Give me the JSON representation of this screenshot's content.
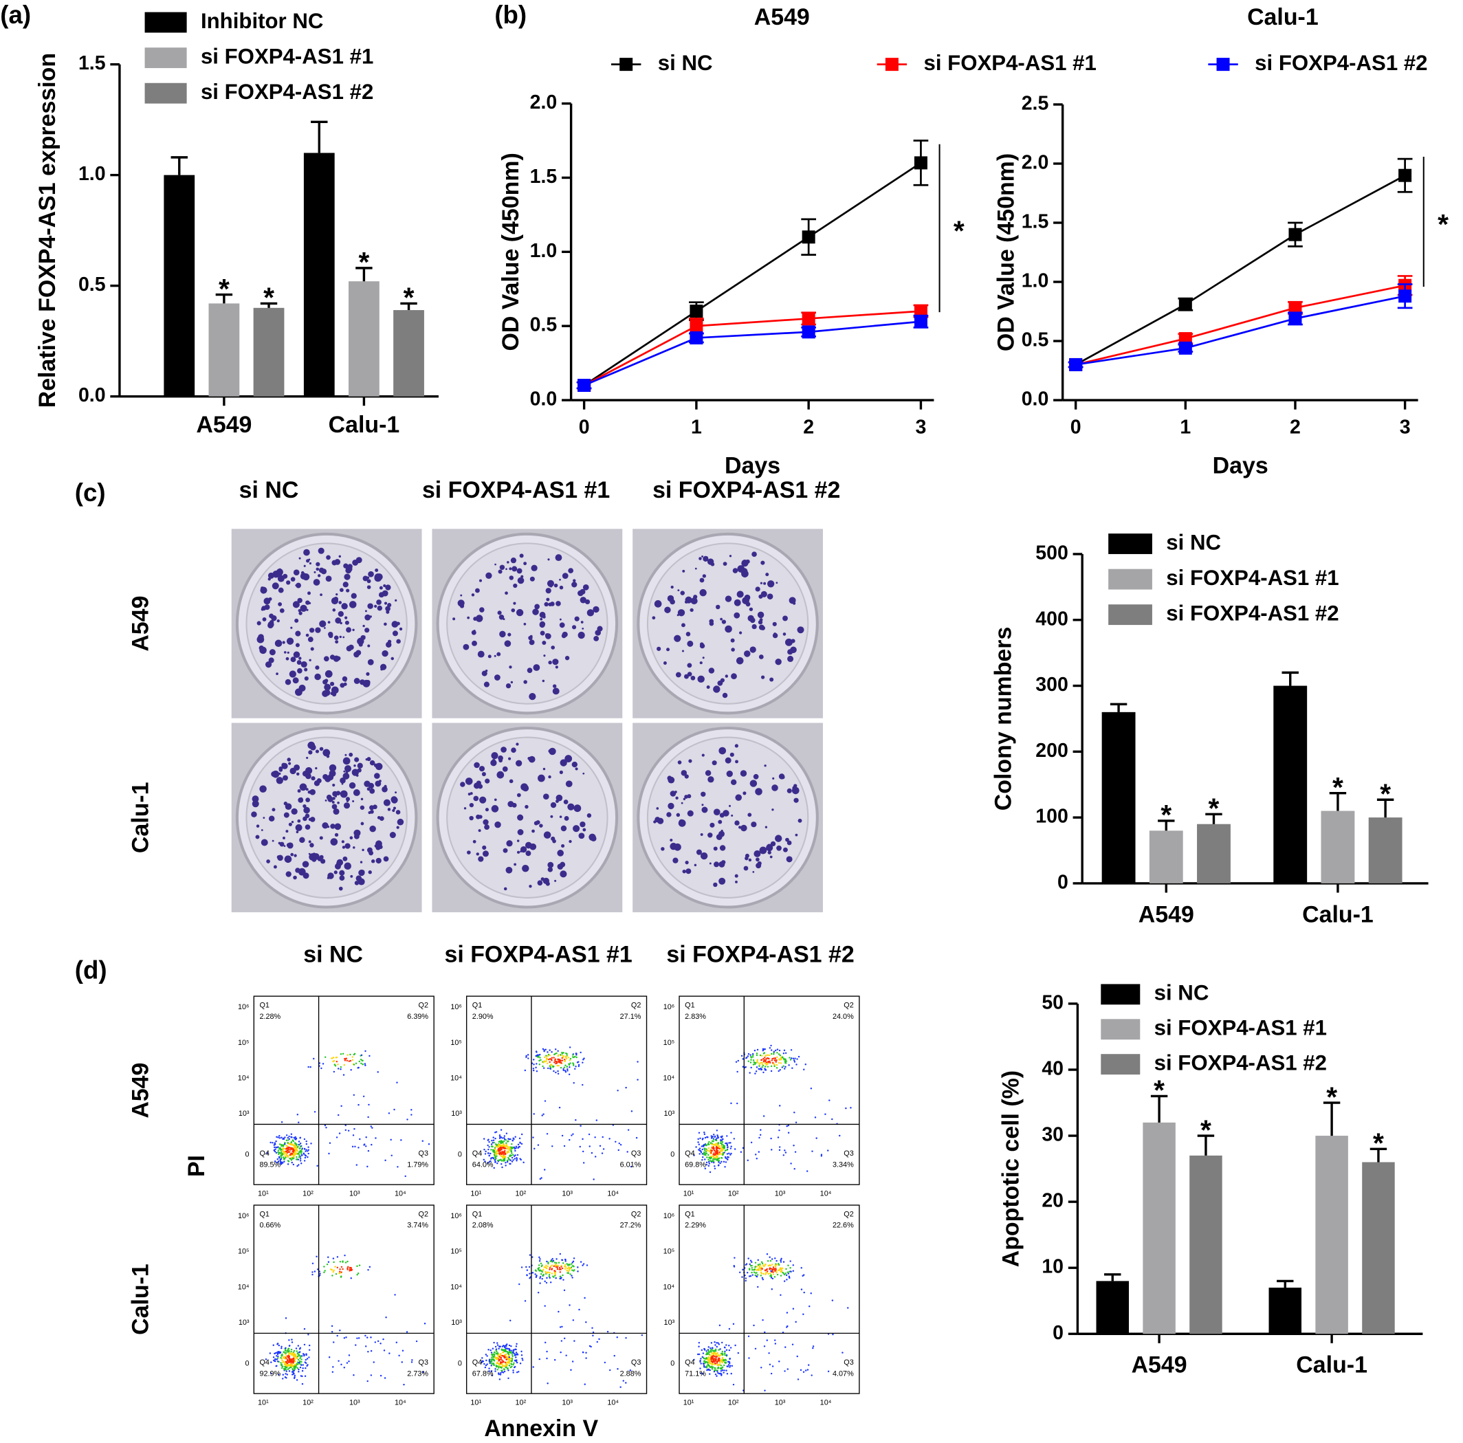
{
  "panels": [
    "(a)",
    "(b)",
    "(c)",
    "(d)"
  ],
  "chart_data": [
    {
      "type": "bar",
      "ylabel": "Relative FOXP4-AS1 expression",
      "categories": [
        "A549",
        "Calu-1"
      ],
      "series": [
        {
          "name": "Inhibitor NC",
          "color": "#000000",
          "values": [
            1.0,
            1.1
          ],
          "errors": [
            0.08,
            0.14
          ]
        },
        {
          "name": "si FOXP4-AS1 #1",
          "color": "#a5a5a8",
          "values": [
            0.42,
            0.52
          ],
          "errors": [
            0.04,
            0.06
          ],
          "significance": [
            "*",
            "*"
          ]
        },
        {
          "name": "si FOXP4-AS1 #2",
          "color": "#7e7e7e",
          "values": [
            0.4,
            0.39
          ],
          "errors": [
            0.02,
            0.03
          ],
          "significance": [
            "*",
            "*"
          ]
        }
      ],
      "ylim": [
        0,
        1.5
      ],
      "yticks": [
        {
          "value": 0,
          "label": "0.0"
        },
        {
          "value": 0.5,
          "label": "0.5"
        },
        {
          "value": 1,
          "label": "1.0"
        },
        {
          "value": 1.5,
          "label": "1.5"
        }
      ]
    },
    {
      "type": "line",
      "title": "A549",
      "xlabel": "Days",
      "ylabel": "OD Value (450nm)",
      "x": [
        0,
        1,
        2,
        3
      ],
      "series": [
        {
          "name": "si NC",
          "color": "#000000",
          "values": [
            0.1,
            0.6,
            1.1,
            1.6
          ],
          "errors": [
            0.02,
            0.06,
            0.12,
            0.15
          ]
        },
        {
          "name": "si FOXP4-AS1 #1",
          "color": "#ff0000",
          "values": [
            0.1,
            0.5,
            0.55,
            0.6
          ],
          "errors": [
            0.02,
            0.05,
            0.04,
            0.04
          ]
        },
        {
          "name": "si FOXP4-AS1 #2",
          "color": "#0000ff",
          "values": [
            0.1,
            0.42,
            0.46,
            0.53
          ],
          "errors": [
            0.02,
            0.03,
            0.03,
            0.04
          ]
        }
      ],
      "annotation": "*",
      "xlim": [
        0,
        3
      ],
      "xticks": [
        0,
        1,
        2,
        3
      ],
      "ylim": [
        0,
        2
      ],
      "yticks": [
        {
          "value": 0,
          "label": "0.0"
        },
        {
          "value": 0.5,
          "label": "0.5"
        },
        {
          "value": 1,
          "label": "1.0"
        },
        {
          "value": 1.5,
          "label": "1.5"
        },
        {
          "value": 2,
          "label": "2.0"
        }
      ]
    },
    {
      "type": "line",
      "title": "Calu-1",
      "xlabel": "Days",
      "ylabel": "OD Value (450nm)",
      "x": [
        0,
        1,
        2,
        3
      ],
      "series": [
        {
          "color": "#000000",
          "values": [
            0.3,
            0.81,
            1.4,
            1.9
          ],
          "errors": [
            0.02,
            0.05,
            0.1,
            0.14
          ]
        },
        {
          "color": "#ff0000",
          "values": [
            0.3,
            0.52,
            0.78,
            0.97
          ],
          "errors": [
            0.02,
            0.04,
            0.05,
            0.08
          ]
        },
        {
          "color": "#0000ff",
          "values": [
            0.3,
            0.44,
            0.69,
            0.88
          ],
          "errors": [
            0.02,
            0.03,
            0.05,
            0.1
          ]
        }
      ],
      "annotation": "*",
      "xlim": [
        0,
        3
      ],
      "xticks": [
        0,
        1,
        2,
        3
      ],
      "ylim": [
        0,
        2.5
      ],
      "yticks": [
        {
          "value": 0,
          "label": "0.0"
        },
        {
          "value": 0.5,
          "label": "0.5"
        },
        {
          "value": 1,
          "label": "1.0"
        },
        {
          "value": 1.5,
          "label": "1.5"
        },
        {
          "value": 2,
          "label": "2.0"
        },
        {
          "value": 2.5,
          "label": "2.5"
        }
      ]
    },
    {
      "type": "bar",
      "ylabel": "Colony numbers",
      "categories": [
        "A549",
        "Calu-1"
      ],
      "series": [
        {
          "name": "si NC",
          "color": "#000000",
          "values": [
            260,
            300
          ],
          "errors": [
            12,
            20
          ]
        },
        {
          "name": "si FOXP4-AS1 #1",
          "color": "#a5a5a8",
          "values": [
            80,
            110
          ],
          "errors": [
            15,
            27
          ],
          "significance": [
            "*",
            "*"
          ]
        },
        {
          "name": "si FOXP4-AS1 #2",
          "color": "#7e7e7e",
          "values": [
            90,
            100
          ],
          "errors": [
            15,
            27
          ],
          "significance": [
            "*",
            "*"
          ]
        }
      ],
      "ylim": [
        0,
        500
      ],
      "yticks": [
        0,
        100,
        200,
        300,
        400,
        500
      ]
    },
    {
      "type": "bar",
      "ylabel": "Apoptotic cell (%)",
      "categories": [
        "A549",
        "Calu-1"
      ],
      "series": [
        {
          "name": "si NC",
          "color": "#000000",
          "values": [
            8,
            7
          ],
          "errors": [
            1,
            1
          ]
        },
        {
          "name": "si FOXP4-AS1 #1",
          "color": "#a5a5a8",
          "values": [
            32,
            30
          ],
          "errors": [
            4,
            5
          ],
          "significance": [
            "*",
            "*"
          ]
        },
        {
          "name": "si FOXP4-AS1 #2",
          "color": "#7e7e7e",
          "values": [
            27,
            26
          ],
          "errors": [
            3,
            2
          ],
          "significance": [
            "*",
            "*"
          ]
        }
      ],
      "ylim": [
        0,
        50
      ],
      "yticks": [
        0,
        10,
        20,
        30,
        40,
        50
      ]
    }
  ],
  "colony": {
    "columns": [
      "si NC",
      "si FOXP4-AS1 #1",
      "si FOXP4-AS1 #2"
    ],
    "rows": [
      "A549",
      "Calu-1"
    ]
  },
  "flow": {
    "columns": [
      "si NC",
      "si FOXP4-AS1 #1",
      "si FOXP4-AS1 #2"
    ],
    "rows": [
      "A549",
      "Calu-1"
    ],
    "xlabel": "Annexin V",
    "ylabel": "PI",
    "quadrants": [
      "Q1",
      "Q2",
      "Q3",
      "Q4"
    ],
    "xticks": [
      "10¹",
      "10²",
      "10³",
      "10⁴"
    ],
    "yticks": [
      "10⁶",
      "10⁵",
      "10⁴",
      "10³",
      "0"
    ],
    "percent": [
      [
        [
          "2.28%",
          "6.39%",
          "1.79%",
          "89.5%"
        ],
        [
          "2.90%",
          "27.1%",
          "6.01%",
          "64.0%"
        ],
        [
          "2.83%",
          "24.0%",
          "3.34%",
          "69.8%"
        ]
      ],
      [
        [
          "0.66%",
          "3.74%",
          "2.73%",
          "92.9%"
        ],
        [
          "2.08%",
          "27.2%",
          "2.88%",
          "67.8%"
        ],
        [
          "2.29%",
          "22.6%",
          "4.07%",
          "71.1%"
        ]
      ]
    ]
  }
}
